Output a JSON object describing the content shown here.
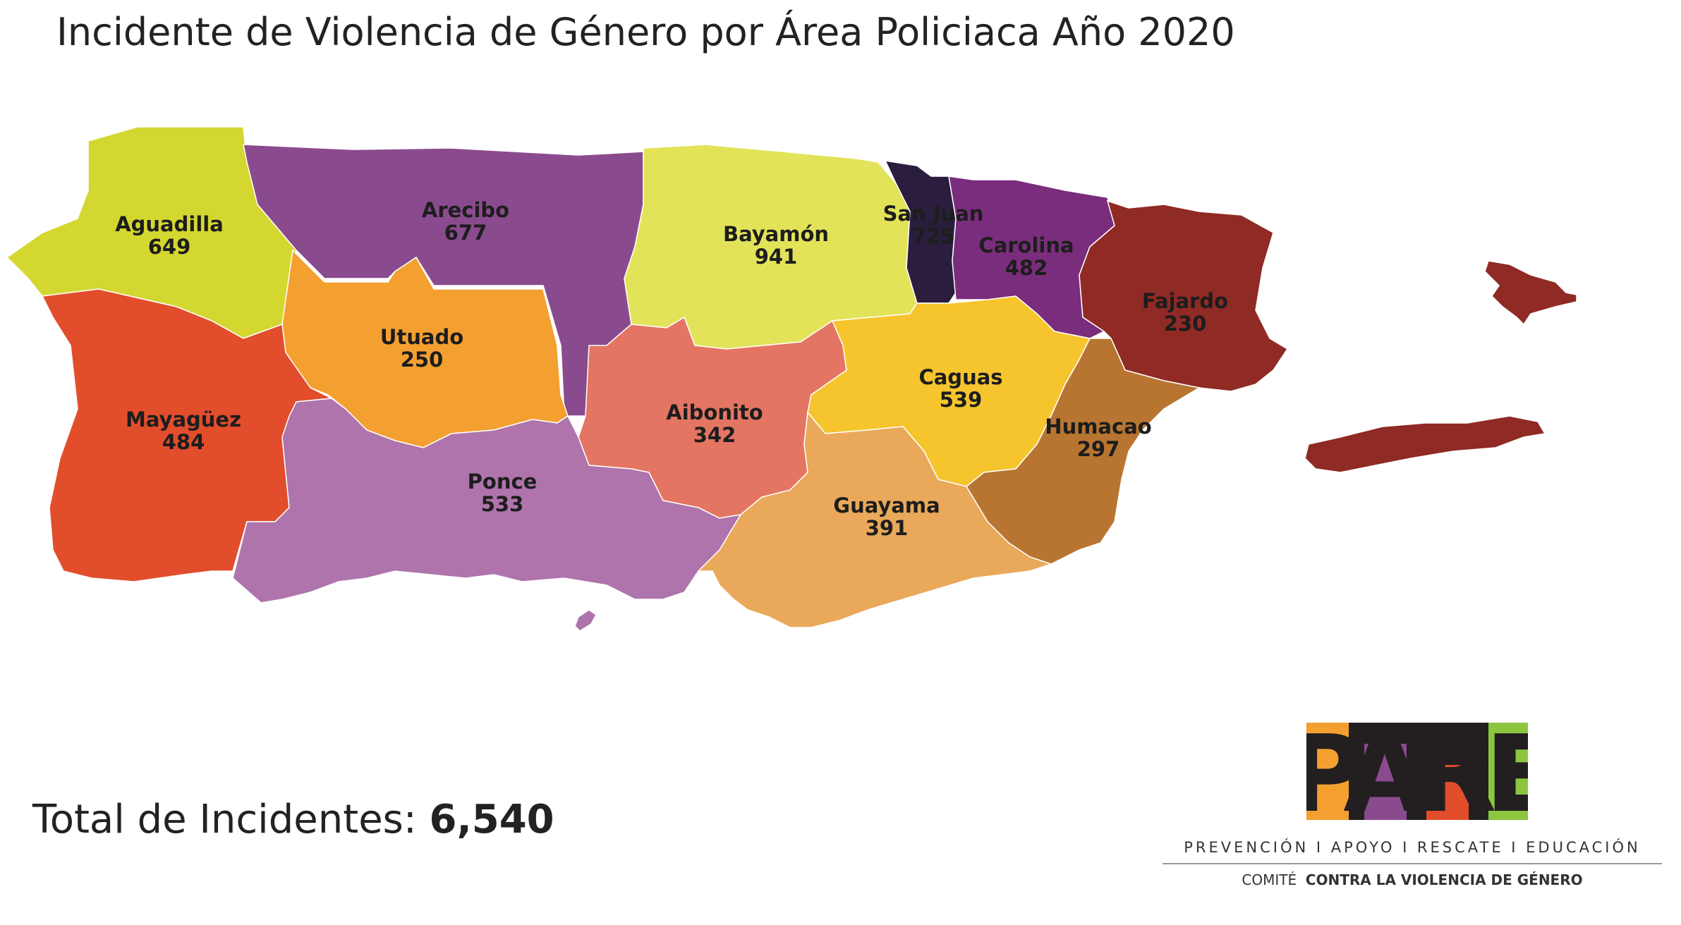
{
  "title": "Incidente de Violencia de Género por Área Policiaca Año 2020",
  "regions": [
    {
      "name": "Aguadilla",
      "value": "649",
      "color": "#d4d730"
    },
    {
      "name": "Arecibo",
      "value": "677",
      "color": "#8a4b8e"
    },
    {
      "name": "Bayamón",
      "value": "941",
      "color": "#e3e35a"
    },
    {
      "name": "San Juan",
      "value": "725",
      "color": "#2b1d3d"
    },
    {
      "name": "Carolina",
      "value": "482",
      "color": "#7a2d7c"
    },
    {
      "name": "Fajardo",
      "value": "230",
      "color": "#8f2a24"
    },
    {
      "name": "Utuado",
      "value": "250",
      "color": "#f4a030"
    },
    {
      "name": "Mayagüez",
      "value": "484",
      "color": "#e24d2c"
    },
    {
      "name": "Aibonito",
      "value": "342",
      "color": "#e47562"
    },
    {
      "name": "Caguas",
      "value": "539",
      "color": "#f6c52d"
    },
    {
      "name": "Humacao",
      "value": "297",
      "color": "#b87532"
    },
    {
      "name": "Ponce",
      "value": "533",
      "color": "#ae74ab"
    },
    {
      "name": "Guayama",
      "value": "391",
      "color": "#eaa95a"
    }
  ],
  "total": {
    "label": "Total de Incidentes:",
    "value": "6,540"
  },
  "logo": {
    "text": "PARE",
    "colors": [
      "#f4a030",
      "#8a4b8e",
      "#e24d2c",
      "#8cc63f",
      "#231f20"
    ]
  },
  "tagline": "PREVENCIÓN  I  APOYO  I  RESCATE  I  EDUCACIÓN",
  "committee": {
    "prefix": "COMITÉ",
    "name": "CONTRA LA VIOLENCIA DE GÉNERO"
  }
}
